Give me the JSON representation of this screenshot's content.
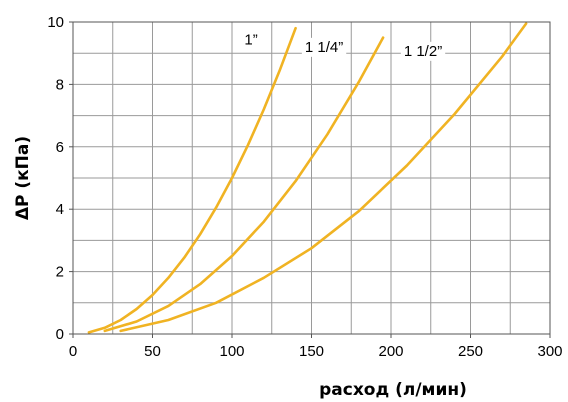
{
  "chart_data": {
    "type": "line",
    "title": "",
    "xlabel": "расход (л/мин)",
    "ylabel": "ΔP (кПа)",
    "xlim": [
      0,
      300
    ],
    "ylim": [
      0,
      10
    ],
    "xticks": [
      0,
      50,
      100,
      150,
      200,
      250,
      300
    ],
    "yticks": [
      0,
      2,
      4,
      6,
      8,
      10
    ],
    "grid": true,
    "line_color": "#f0b323",
    "series": [
      {
        "name": "1”",
        "x": [
          10,
          20,
          30,
          40,
          50,
          60,
          70,
          80,
          90,
          100,
          110,
          120,
          130,
          140
        ],
        "y": [
          0.05,
          0.2,
          0.45,
          0.8,
          1.25,
          1.8,
          2.45,
          3.2,
          4.05,
          5.0,
          6.05,
          7.2,
          8.45,
          9.8
        ]
      },
      {
        "name": "1 1/4”",
        "x": [
          20,
          40,
          60,
          80,
          100,
          120,
          140,
          160,
          180,
          195
        ],
        "y": [
          0.1,
          0.4,
          0.9,
          1.6,
          2.5,
          3.6,
          4.9,
          6.4,
          8.1,
          9.5
        ]
      },
      {
        "name": "1 1/2”",
        "x": [
          30,
          60,
          90,
          120,
          150,
          180,
          210,
          240,
          270,
          285
        ],
        "y": [
          0.1,
          0.45,
          1.0,
          1.8,
          2.75,
          3.95,
          5.4,
          7.05,
          8.9,
          9.95
        ]
      }
    ]
  }
}
